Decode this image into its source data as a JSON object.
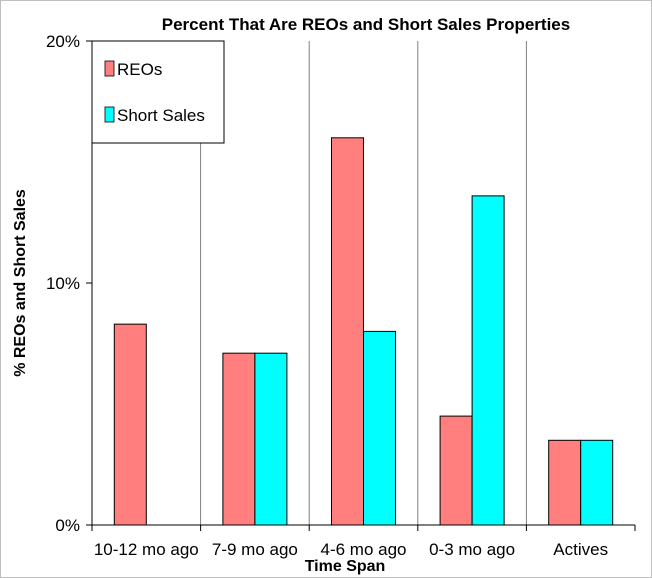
{
  "chart_data": {
    "type": "bar",
    "title": "Percent That Are REOs and Short Sales Properties",
    "xlabel": "Time Span",
    "ylabel": "% REOs and Short Sales",
    "categories": [
      "10-12 mo ago",
      "7-9 mo ago",
      "4-6 mo ago",
      "0-3 mo ago",
      "Actives"
    ],
    "series": [
      {
        "name": "REOs",
        "values": [
          8.3,
          7.1,
          16.0,
          4.5,
          3.5
        ],
        "color": "#ff7f7f"
      },
      {
        "name": "Short Sales",
        "values": [
          0,
          7.1,
          8.0,
          13.6,
          3.5
        ],
        "color": "#00ffff"
      }
    ],
    "ylim": [
      0,
      20
    ],
    "yticks": [
      0,
      10,
      20
    ],
    "ytick_labels": [
      "0%",
      "10%",
      "20%"
    ],
    "grid": "vertical category separators",
    "legend_placement": "top-left"
  }
}
